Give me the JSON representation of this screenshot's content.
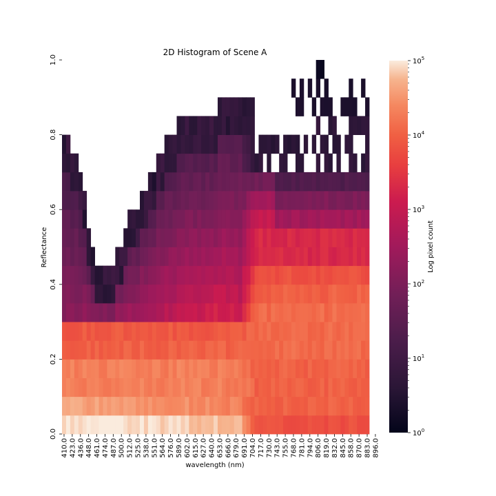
{
  "chart_data": {
    "type": "heatmap",
    "title": "2D Histogram of Scene A",
    "xlabel": "wavelength (nm)",
    "ylabel": "Reflectance",
    "x_start_nm": 410.0,
    "x_step_nm": 6.5,
    "x_count": 75,
    "x_tick_labels": [
      "410.0",
      "423.0",
      "436.0",
      "448.0",
      "461.0",
      "474.0",
      "487.0",
      "500.0",
      "512.0",
      "525.0",
      "538.0",
      "551.0",
      "564.0",
      "576.0",
      "589.0",
      "602.0",
      "615.0",
      "627.0",
      "640.0",
      "653.0",
      "666.0",
      "679.0",
      "691.0",
      "704.0",
      "717.0",
      "730.0",
      "743.0",
      "755.0",
      "768.0",
      "781.0",
      "794.0",
      "806.0",
      "819.0",
      "832.0",
      "845.0",
      "858.0",
      "870.0",
      "883.0",
      "896.0"
    ],
    "y_range": [
      0.0,
      1.0
    ],
    "y_bins": 20,
    "y_tick_labels": [
      "0.0",
      "0.2",
      "0.4",
      "0.6",
      "0.8",
      "1.0"
    ],
    "colorbar": {
      "label": "Log pixel count",
      "scale": "log",
      "range": [
        1,
        100000
      ],
      "tick_labels": [
        {
          "base": "10",
          "exp": "0"
        },
        {
          "base": "10",
          "exp": "1"
        },
        {
          "base": "10",
          "exp": "2"
        },
        {
          "base": "10",
          "exp": "3"
        },
        {
          "base": "10",
          "exp": "4"
        },
        {
          "base": "10",
          "exp": "5"
        }
      ]
    },
    "approx_log10_counts_by_bin": {
      "note_bins": "reflectance bin 0 = 0.00-0.05 ... bin 19 = 0.95-1.00",
      "visible_band_lowest_bin": [
        5.0,
        4.6,
        4.3,
        4.3,
        4.0,
        3.9
      ],
      "near_infrared_lowest_bins": [
        3.8,
        4.0,
        4.0,
        4.0,
        4.1,
        4.1,
        4.1,
        4.0,
        3.8,
        3.3
      ]
    }
  }
}
